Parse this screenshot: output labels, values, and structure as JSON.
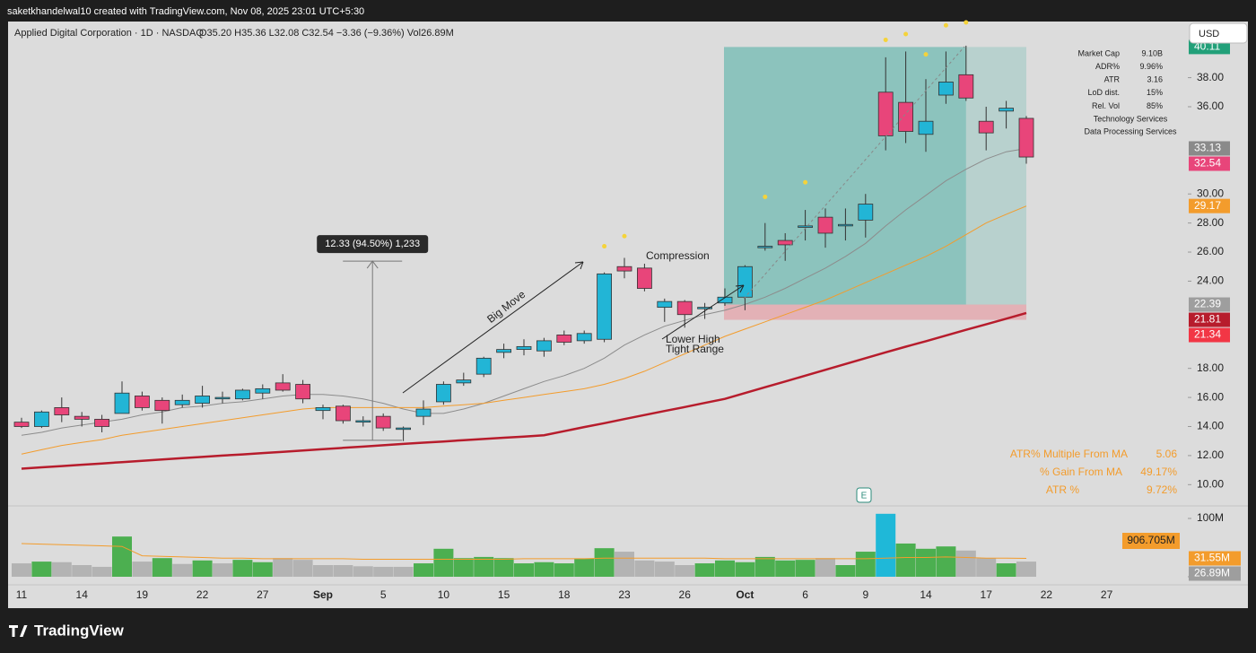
{
  "header": {
    "byline": "saketkhandelwal10 created with TradingView.com, Nov 08, 2025 23:01 UTC+5:30",
    "currency": "USD",
    "brand": "TradingView"
  },
  "chart_data": {
    "type": "candlestick",
    "title": "Applied Digital Corporation · 1D · NASDAQ",
    "ohlc_text": "O35.20 H35.36 L32.08 C32.54 −3.36 (−9.36%) Vol26.89M",
    "categories": [
      "11",
      null,
      null,
      "14",
      null,
      null,
      "19",
      null,
      null,
      "22",
      null,
      null,
      "27",
      null,
      null,
      "Sep",
      null,
      null,
      "5",
      null,
      null,
      "10",
      null,
      null,
      "15",
      null,
      null,
      "18",
      null,
      null,
      "23",
      null,
      null,
      "26",
      null,
      null,
      "Oct",
      null,
      null,
      "6",
      null,
      null,
      "9",
      null,
      null,
      "14",
      null,
      null,
      "17",
      null,
      null,
      "22",
      null,
      null,
      "27"
    ],
    "open": [
      14.3,
      14.0,
      15.3,
      14.7,
      14.5,
      14.9,
      16.1,
      15.8,
      15.5,
      15.6,
      15.9,
      15.9,
      16.3,
      17.0,
      16.9,
      15.1,
      15.4,
      14.3,
      14.7,
      13.8,
      14.7,
      15.7,
      17.0,
      17.6,
      19.1,
      19.3,
      19.2,
      20.3,
      19.9,
      20.0,
      25.0,
      24.9,
      22.2,
      22.6,
      22.1,
      22.5,
      22.9,
      26.3,
      26.8,
      27.7,
      28.4,
      27.8,
      28.2,
      37.0,
      36.3,
      34.1,
      36.8,
      38.2,
      35.0,
      35.7,
      35.2,
      null,
      null,
      null,
      null
    ],
    "high": [
      14.6,
      15.1,
      16.0,
      15.0,
      14.8,
      17.1,
      16.4,
      16.0,
      16.2,
      16.8,
      16.4,
      16.6,
      16.9,
      17.6,
      17.2,
      15.5,
      15.5,
      14.7,
      14.9,
      14.0,
      15.8,
      17.1,
      17.7,
      18.8,
      19.7,
      20.0,
      20.1,
      20.6,
      20.6,
      24.6,
      25.6,
      25.2,
      22.8,
      22.7,
      22.5,
      23.5,
      25.1,
      28.0,
      27.3,
      28.9,
      29.0,
      29.0,
      30.0,
      39.4,
      39.8,
      37.9,
      39.8,
      40.2,
      36.0,
      36.4,
      35.36,
      null,
      null,
      null,
      null
    ],
    "low": [
      13.9,
      13.9,
      14.3,
      14.0,
      13.6,
      14.9,
      15.1,
      14.2,
      15.3,
      15.3,
      15.6,
      15.8,
      15.9,
      16.4,
      15.6,
      14.5,
      14.2,
      14.0,
      13.7,
      13.0,
      14.1,
      15.5,
      16.8,
      17.4,
      18.7,
      18.9,
      18.8,
      19.6,
      19.7,
      19.8,
      24.2,
      23.3,
      21.2,
      20.8,
      21.4,
      22.3,
      22.0,
      26.1,
      25.4,
      26.8,
      26.3,
      26.8,
      27.0,
      33.0,
      33.5,
      32.9,
      36.2,
      36.4,
      33.0,
      34.5,
      32.08,
      null,
      null,
      null,
      null
    ],
    "close": [
      14.0,
      15.0,
      14.8,
      14.5,
      14.0,
      16.3,
      15.3,
      15.1,
      15.8,
      16.1,
      16.0,
      16.5,
      16.6,
      16.5,
      15.9,
      15.3,
      14.4,
      14.4,
      13.9,
      13.9,
      15.2,
      16.9,
      17.2,
      18.7,
      19.3,
      19.5,
      19.9,
      19.8,
      20.4,
      24.5,
      24.7,
      23.5,
      22.6,
      21.7,
      22.2,
      22.9,
      25.0,
      26.4,
      26.5,
      27.8,
      27.3,
      27.9,
      29.3,
      34.0,
      34.3,
      35.0,
      37.7,
      36.6,
      34.2,
      35.9,
      32.54,
      null,
      null,
      null,
      null
    ],
    "up_color": "#22b5d6",
    "down_color": "#e8457a",
    "ylim": [
      8.6,
      41.8
    ],
    "yticks": [
      {
        "value": 38,
        "label": "38.00"
      },
      {
        "value": 36,
        "label": "36.00"
      },
      {
        "value": 30,
        "label": "30.00"
      },
      {
        "value": 28,
        "label": "28.00"
      },
      {
        "value": 26,
        "label": "26.00"
      },
      {
        "value": 24,
        "label": "24.00"
      },
      {
        "value": 18,
        "label": "18.00"
      },
      {
        "value": 16,
        "label": "16.00"
      },
      {
        "value": 14,
        "label": "14.00"
      },
      {
        "value": 12,
        "label": "12.00"
      },
      {
        "value": 10,
        "label": "10.00"
      }
    ],
    "grid": false,
    "moving_averages": [
      {
        "color": "#8c8c8c",
        "values": [
          13.4,
          13.6,
          13.9,
          14.1,
          14.3,
          14.5,
          14.8,
          15.0,
          15.3,
          15.4,
          15.6,
          15.7,
          15.9,
          16.1,
          16.2,
          16.2,
          16.1,
          15.9,
          15.6,
          15.2,
          14.9,
          14.9,
          15.2,
          15.6,
          16.1,
          16.6,
          17.1,
          17.5,
          18.0,
          18.7,
          19.6,
          20.3,
          20.9,
          21.3,
          21.7,
          22.0,
          22.4,
          22.9,
          23.5,
          24.2,
          24.9,
          25.7,
          26.6,
          27.8,
          28.9,
          29.9,
          30.9,
          31.7,
          32.4,
          32.9,
          33.13,
          null,
          null,
          null,
          null
        ]
      },
      {
        "color": "#f39c2c",
        "values": [
          12.1,
          12.4,
          12.7,
          12.9,
          13.1,
          13.4,
          13.6,
          13.8,
          14.0,
          14.2,
          14.4,
          14.6,
          14.8,
          15.0,
          15.2,
          15.3,
          15.3,
          15.3,
          15.3,
          15.3,
          15.3,
          15.4,
          15.5,
          15.6,
          15.8,
          16.0,
          16.2,
          16.4,
          16.6,
          16.9,
          17.3,
          17.8,
          18.4,
          19.0,
          19.6,
          20.2,
          20.7,
          21.2,
          21.7,
          22.2,
          22.7,
          23.3,
          23.9,
          24.5,
          25.1,
          25.7,
          26.4,
          27.2,
          28.0,
          28.6,
          29.17,
          null,
          null,
          null,
          null
        ]
      },
      {
        "color": "#b71c2c",
        "values": [
          11.1,
          11.19,
          11.28,
          11.37,
          11.46,
          11.55,
          11.64,
          11.73,
          11.82,
          11.91,
          12.0,
          12.08,
          12.17,
          12.26,
          12.35,
          12.44,
          12.53,
          12.62,
          12.71,
          12.8,
          12.89,
          12.97,
          13.06,
          13.14,
          13.23,
          13.31,
          13.4,
          13.68,
          13.96,
          14.23,
          14.51,
          14.79,
          15.07,
          15.34,
          15.62,
          15.9,
          16.3,
          16.7,
          17.1,
          17.5,
          17.9,
          18.3,
          18.7,
          19.1,
          19.49,
          19.87,
          20.26,
          20.65,
          21.03,
          21.42,
          21.81,
          null,
          null,
          null,
          null
        ]
      }
    ],
    "markers": {
      "color": "#f5d33a",
      "x": [
        29,
        30,
        37,
        39,
        43,
        44,
        45,
        46,
        47
      ],
      "values": [
        26.4,
        27.1,
        29.8,
        30.8,
        40.6,
        41.0,
        39.6,
        41.6,
        41.8
      ]
    },
    "price_labels": [
      {
        "value": 33.13,
        "label": "33.13",
        "color": "#8a8a8a"
      },
      {
        "value": 32.54,
        "label": "32.54",
        "color": "#e8457a"
      },
      {
        "value": 29.17,
        "label": "29.17",
        "color": "#f39c2c"
      },
      {
        "value": 21.81,
        "label": "21.81",
        "color": "#b71c2c"
      }
    ],
    "position": {
      "start": 35,
      "end": 50,
      "fade_from": 47,
      "target": {
        "value": 40.11,
        "label": "40.11",
        "color": "#22a079"
      },
      "entry": {
        "value": 22.39,
        "label": "22.39",
        "color": "#9e9e9e"
      },
      "stop": {
        "value": 21.34,
        "label": "21.34",
        "color": "#f23645"
      }
    },
    "measure": {
      "index": 18,
      "from": 13.05,
      "to": 25.38,
      "label": "12.33 (94.50%) 1,233"
    },
    "annotations": [
      "Big Move",
      "Compression",
      "Lower High",
      "Tight Range"
    ],
    "volume": {
      "ylim": [
        0,
        120
      ],
      "yticks": [
        {
          "value": 100,
          "label": "100M"
        },
        0
      ],
      "values": [
        23,
        26,
        25,
        20,
        17,
        69,
        26,
        32,
        22,
        28,
        23,
        29,
        25,
        32,
        29,
        20,
        20,
        18,
        17,
        17,
        23,
        48,
        32,
        34,
        32,
        23,
        25,
        23,
        31,
        49,
        43,
        28,
        26,
        20,
        23,
        28,
        25,
        34,
        28,
        29,
        32,
        20,
        43,
        108,
        57,
        48,
        52,
        45,
        32,
        23,
        26,
        null,
        null,
        null,
        null
      ],
      "colors": [
        "#b3b3b3",
        "#4caf50",
        "#b3b3b3",
        "#b3b3b3",
        "#b3b3b3",
        "#4caf50",
        "#b3b3b3",
        "#4caf50",
        "#b3b3b3",
        "#4caf50",
        "#b3b3b3",
        "#4caf50",
        "#4caf50",
        "#b3b3b3",
        "#b3b3b3",
        "#b3b3b3",
        "#b3b3b3",
        "#b3b3b3",
        "#b3b3b3",
        "#b3b3b3",
        "#4caf50",
        "#4caf50",
        "#4caf50",
        "#4caf50",
        "#4caf50",
        "#4caf50",
        "#4caf50",
        "#4caf50",
        "#4caf50",
        "#4caf50",
        "#b3b3b3",
        "#b3b3b3",
        "#b3b3b3",
        "#b3b3b3",
        "#4caf50",
        "#4caf50",
        "#4caf50",
        "#4caf50",
        "#4caf50",
        "#4caf50",
        "#b3b3b3",
        "#4caf50",
        "#4caf50",
        "#1fb8d8",
        "#4caf50",
        "#4caf50",
        "#4caf50",
        "#b3b3b3",
        "#b3b3b3",
        "#4caf50",
        "#b3b3b3",
        null,
        null,
        null,
        null
      ],
      "ma": {
        "color": "#f39c2c",
        "values": [
          57,
          56,
          55,
          54,
          53,
          52,
          36,
          35,
          34,
          33,
          32,
          32,
          31,
          31,
          31,
          31,
          31,
          30,
          30,
          30,
          30,
          30,
          30,
          30,
          30,
          31,
          31,
          31,
          31,
          32,
          32,
          32,
          32,
          32,
          32,
          31,
          31,
          31,
          31,
          31,
          31,
          31,
          31,
          32,
          33,
          33,
          34,
          33,
          32,
          32,
          31.55,
          null,
          null,
          null,
          null
        ]
      },
      "labels": [
        {
          "value": 31.55,
          "label": "31.55M",
          "color": "#f39c2c"
        },
        {
          "value": 26.89,
          "label": "26.89M",
          "color": "#9e9e9e"
        }
      ],
      "extra_label": "906.705M"
    }
  },
  "stats": {
    "rows": [
      [
        "Market Cap",
        "9.10B"
      ],
      [
        "ADR%",
        "9.96%"
      ],
      [
        "ATR",
        "3.16"
      ],
      [
        "LoD dist.",
        "15%"
      ],
      [
        "Rel. Vol",
        "85%"
      ]
    ],
    "sector": "Technology Services",
    "industry": "Data Processing Services"
  },
  "ma_stats": {
    "rows": [
      [
        "ATR% Multiple From MA",
        "5.06"
      ],
      [
        "% Gain From MA",
        "49.17%"
      ],
      [
        "ATR %",
        "9.72%"
      ]
    ]
  }
}
